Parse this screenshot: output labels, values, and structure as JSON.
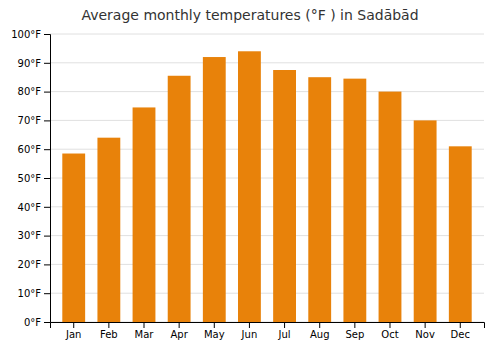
{
  "chart_data": {
    "type": "bar",
    "title": "Average monthly temperatures (°F ) in Sadābād",
    "categories": [
      "Jan",
      "Feb",
      "Mar",
      "Apr",
      "May",
      "Jun",
      "Jul",
      "Aug",
      "Sep",
      "Oct",
      "Nov",
      "Dec"
    ],
    "values": [
      58.5,
      64.0,
      74.5,
      85.5,
      92.0,
      94.0,
      87.5,
      85.0,
      84.5,
      80.0,
      70.0,
      61.0
    ],
    "color": "#E8820A",
    "ylim": [
      0,
      100
    ],
    "yticks": [
      {
        "value": 0,
        "label": "0°F"
      },
      {
        "value": 10,
        "label": "10°F"
      },
      {
        "value": 20,
        "label": "20°F"
      },
      {
        "value": 30,
        "label": "30°F"
      },
      {
        "value": 40,
        "label": "40°F"
      },
      {
        "value": 50,
        "label": "50°F"
      },
      {
        "value": 60,
        "label": "60°F"
      },
      {
        "value": 70,
        "label": "70°F"
      },
      {
        "value": 80,
        "label": "80°F"
      },
      {
        "value": 90,
        "label": "90°F"
      },
      {
        "value": 100,
        "label": "100°F"
      }
    ],
    "grid": true
  }
}
